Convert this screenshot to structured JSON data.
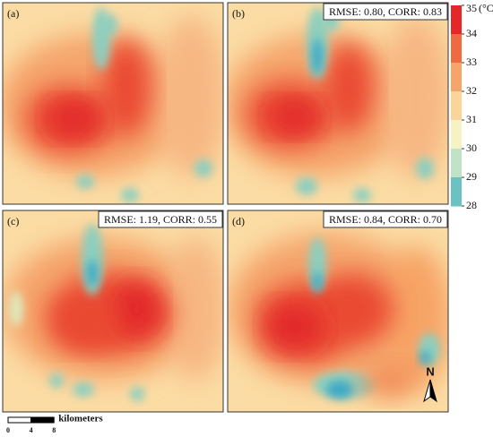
{
  "panels": [
    {
      "label": "(a)"
    },
    {
      "label": "(b)",
      "stats": "RMSE: 0.80, CORR: 0.83"
    },
    {
      "label": "(c)",
      "stats": "RMSE: 1.19, CORR: 0.55"
    },
    {
      "label": "(d)",
      "stats": "RMSE: 0.84, CORR: 0.70"
    }
  ],
  "colorbar": {
    "ticks": [
      35,
      34,
      33,
      32,
      31,
      30,
      29,
      28
    ],
    "unit": "(°C)",
    "colors": [
      "#e4282a",
      "#f06a3f",
      "#f7a468",
      "#fbd49a",
      "#f6f2c4",
      "#bfe3c4",
      "#6cc2c0",
      "#1f8cc2"
    ]
  },
  "scale_bar": {
    "ticks": [
      0,
      4,
      8
    ],
    "unit": "kilometers"
  },
  "north": "N"
}
